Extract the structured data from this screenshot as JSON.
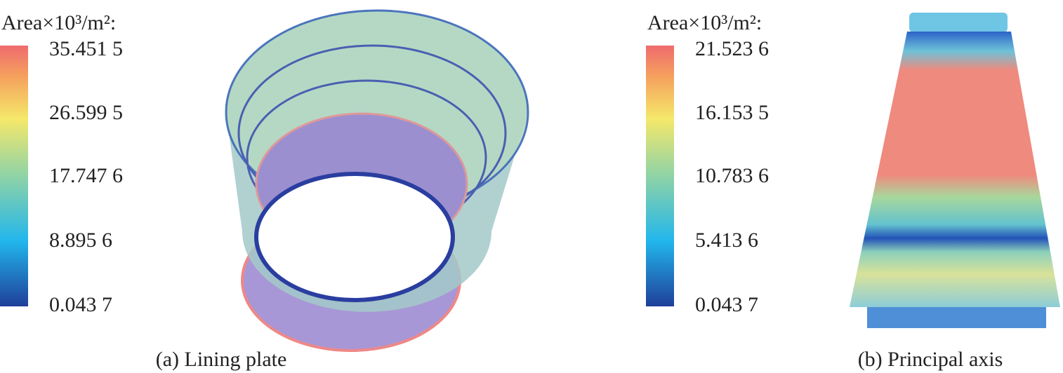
{
  "panels": [
    {
      "legend_title": "Area×10³/m²:",
      "ticks": [
        "35.451 5",
        "26.599 5",
        "17.747 6",
        "8.895 6",
        "0.043 7"
      ],
      "caption": "(a) Lining plate"
    },
    {
      "legend_title": "Area×10³/m²:",
      "ticks": [
        "21.523 6",
        "16.153 5",
        "10.783 6",
        "5.413 6",
        "0.043 7"
      ],
      "caption": "(b) Principal axis"
    }
  ]
}
